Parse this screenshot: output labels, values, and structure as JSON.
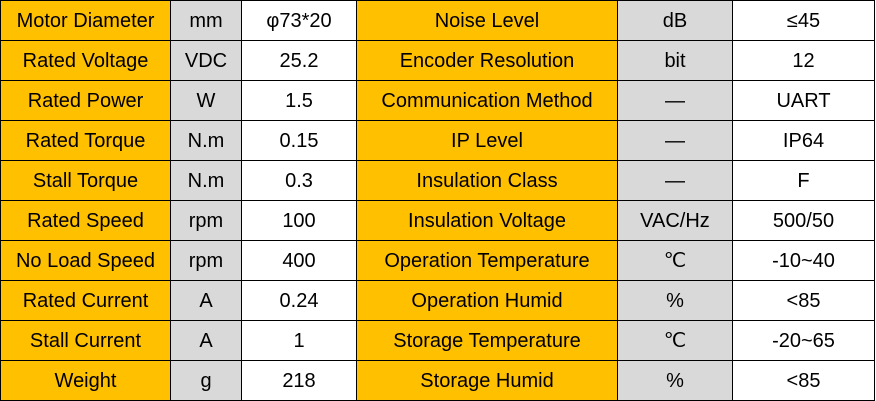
{
  "colors": {
    "name_cell": "#ffc000",
    "unit_cell": "#d9d9d9",
    "value_cell": "#ffffff",
    "border": "#000000"
  },
  "rows": [
    {
      "left": {
        "name": "Motor Diameter",
        "unit": "mm",
        "value": "φ73*20"
      },
      "right": {
        "name": "Noise Level",
        "unit": "dB",
        "value": "≤45"
      }
    },
    {
      "left": {
        "name": "Rated Voltage",
        "unit": "VDC",
        "value": "25.2"
      },
      "right": {
        "name": "Encoder Resolution",
        "unit": "bit",
        "value": "12"
      }
    },
    {
      "left": {
        "name": "Rated Power",
        "unit": "W",
        "value": "1.5"
      },
      "right": {
        "name": "Communication Method",
        "unit": "—",
        "value": "UART"
      }
    },
    {
      "left": {
        "name": "Rated Torque",
        "unit": "N.m",
        "value": "0.15"
      },
      "right": {
        "name": "IP Level",
        "unit": "—",
        "value": "IP64"
      }
    },
    {
      "left": {
        "name": "Stall Torque",
        "unit": "N.m",
        "value": "0.3"
      },
      "right": {
        "name": "Insulation Class",
        "unit": "—",
        "value": "F"
      }
    },
    {
      "left": {
        "name": "Rated Speed",
        "unit": "rpm",
        "value": "100"
      },
      "right": {
        "name": "Insulation Voltage",
        "unit": "VAC/Hz",
        "value": "500/50"
      }
    },
    {
      "left": {
        "name": "No Load Speed",
        "unit": "rpm",
        "value": "400"
      },
      "right": {
        "name": "Operation Temperature",
        "unit": "℃",
        "value": "-10~40"
      }
    },
    {
      "left": {
        "name": "Rated Current",
        "unit": "A",
        "value": "0.24"
      },
      "right": {
        "name": "Operation Humid",
        "unit": "%",
        "value": "<85"
      }
    },
    {
      "left": {
        "name": "Stall Current",
        "unit": "A",
        "value": "1"
      },
      "right": {
        "name": "Storage Temperature",
        "unit": "℃",
        "value": "-20~65"
      }
    },
    {
      "left": {
        "name": "Weight",
        "unit": "g",
        "value": "218"
      },
      "right": {
        "name": "Storage Humid",
        "unit": "%",
        "value": "<85"
      }
    }
  ]
}
